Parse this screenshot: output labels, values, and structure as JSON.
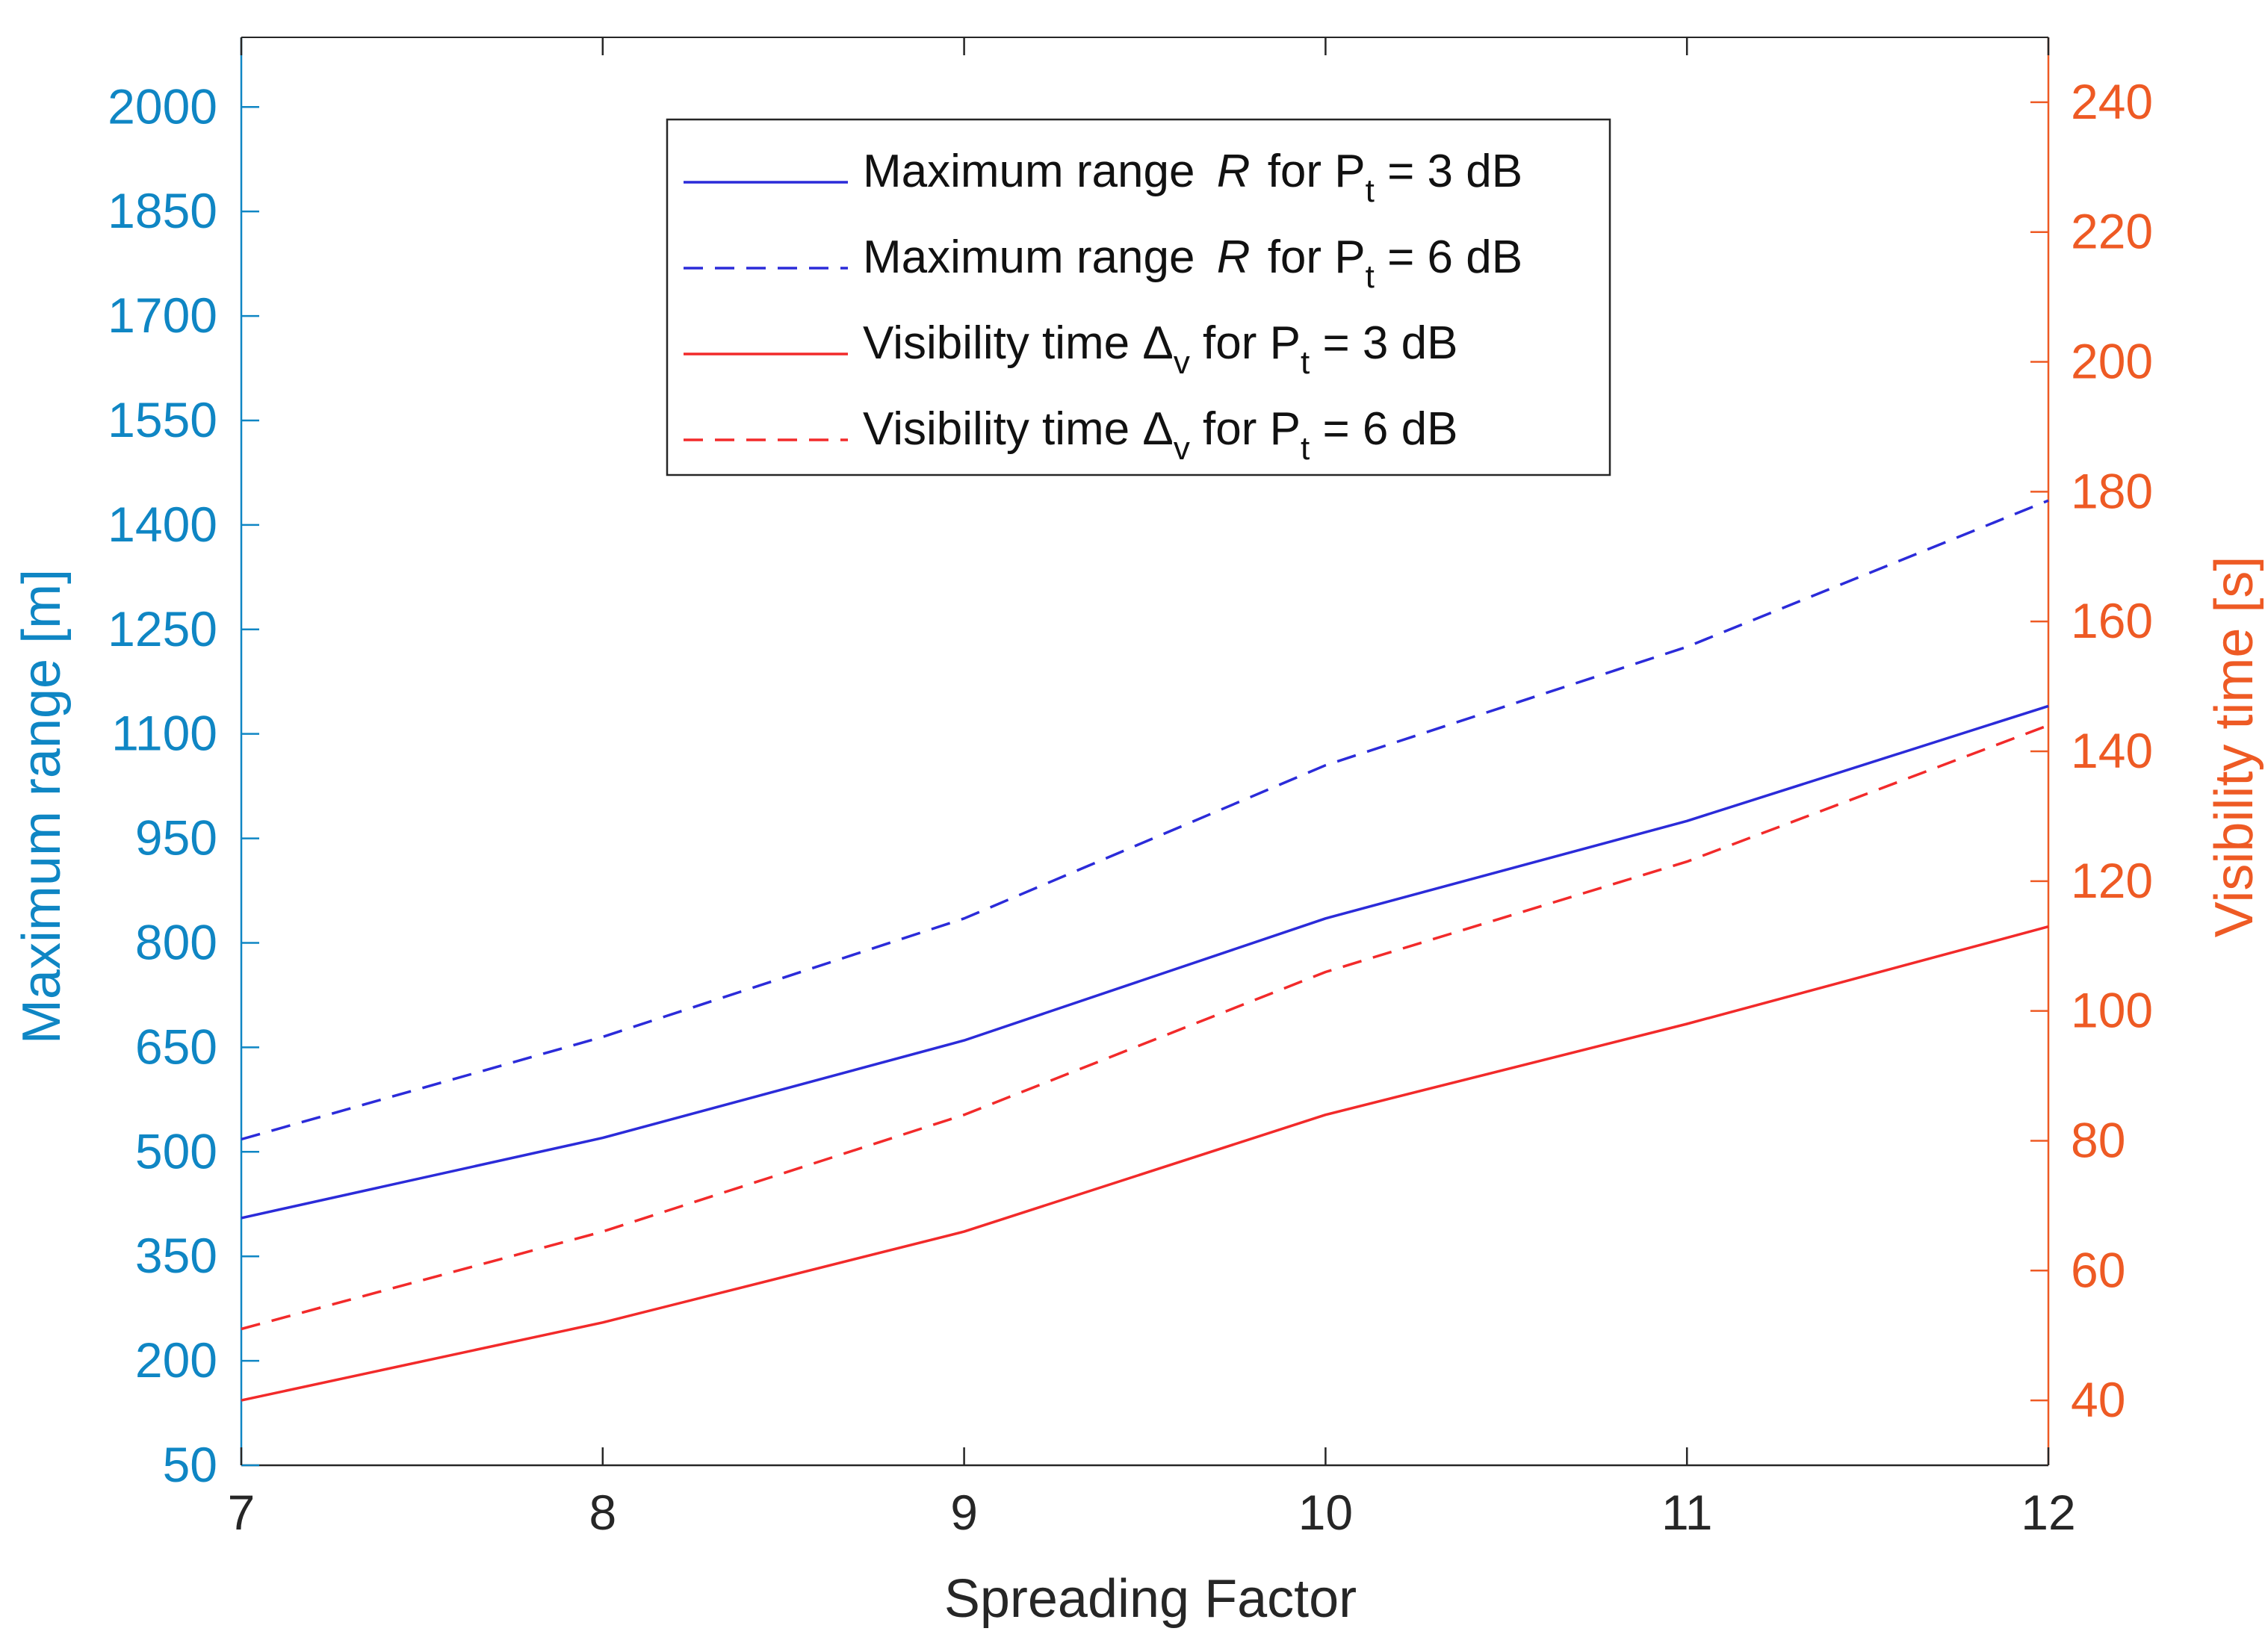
{
  "chart_data": {
    "type": "line",
    "xlabel": "Spreading Factor",
    "ylabel_left": "Maximum range [m]",
    "ylabel_right": "Visibility time [s]",
    "x": [
      7,
      8,
      9,
      10,
      11,
      12
    ],
    "xlim": [
      7,
      12
    ],
    "ylim_left": [
      50,
      2100
    ],
    "ylim_right": [
      30,
      250
    ],
    "xticks": [
      "7",
      "8",
      "9",
      "10",
      "11",
      "12"
    ],
    "yticks_left": [
      "50",
      "200",
      "350",
      "500",
      "650",
      "800",
      "950",
      "1100",
      "1250",
      "1400",
      "1550",
      "1700",
      "1850",
      "2000"
    ],
    "yticks_right": [
      "40",
      "60",
      "80",
      "100",
      "120",
      "140",
      "160",
      "180",
      "200",
      "220",
      "240"
    ],
    "grid": false,
    "legend_position": "top-center",
    "series": [
      {
        "name": "Maximum range R for Pt = 3 dB",
        "legend": {
          "main": "Maximum range ",
          "var": "R",
          "mid": " for P",
          "sub": "t",
          "end": " = 3 dB"
        },
        "axis": "left",
        "color": "#2b2bd9",
        "dash": "solid",
        "values": [
          405,
          520,
          660,
          835,
          975,
          1140
        ]
      },
      {
        "name": "Maximum range R for Pt = 6 dB",
        "legend": {
          "main": "Maximum range ",
          "var": "R",
          "mid": " for P",
          "sub": "t",
          "end": " = 6 dB"
        },
        "axis": "left",
        "color": "#2b2bd9",
        "dash": "dashed",
        "values": [
          518,
          665,
          835,
          1055,
          1225,
          1435
        ]
      },
      {
        "name": "Visibility time Δv for Pt = 3 dB",
        "legend": {
          "main": "Visibility time ",
          "var": "Δ",
          "varsub": "v",
          "mid": " for P",
          "sub": "t",
          "end": " = 3 dB"
        },
        "axis": "right",
        "color": "#f22a2a",
        "dash": "solid",
        "values": [
          40,
          52,
          66,
          84,
          98,
          113
        ]
      },
      {
        "name": "Visibility time Δv for Pt = 6 dB",
        "legend": {
          "main": "Visibility time ",
          "var": "Δ",
          "varsub": "v",
          "mid": " for P",
          "sub": "t",
          "end": " = 6 dB"
        },
        "axis": "right",
        "color": "#f22a2a",
        "dash": "dashed",
        "values": [
          51,
          66,
          84,
          106,
          123,
          144
        ]
      }
    ]
  }
}
